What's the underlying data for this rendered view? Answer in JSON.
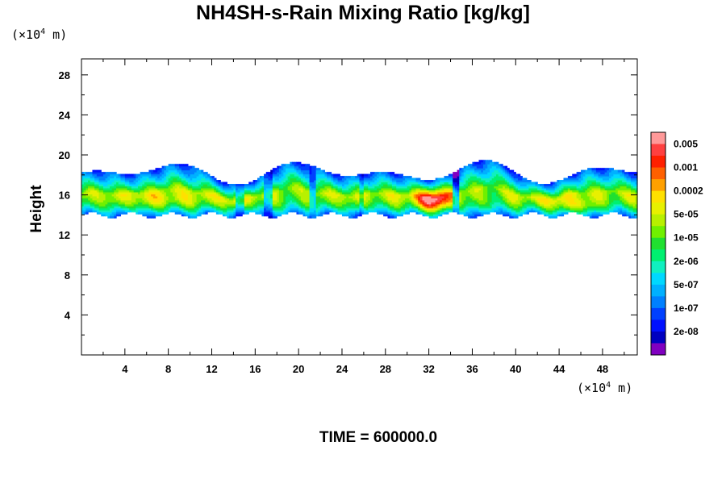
{
  "title": "NH4SH-s-Rain Mixing Ratio [kg/kg]",
  "y_unit": {
    "prefix": "(×10",
    "exp": "4",
    "suffix": " m)"
  },
  "x_unit": {
    "prefix": "(×10",
    "exp": "4",
    "suffix": " m)"
  },
  "ylabel": "Height",
  "time_label": "TIME = 600000.0",
  "chart_data": {
    "type": "heatmap",
    "title": "NH4SH-s-Rain Mixing Ratio [kg/kg]",
    "ylabel": "Height",
    "xlim": [
      0,
      51.2
    ],
    "ylim": [
      0,
      29.6
    ],
    "x_ticks": [
      4,
      8,
      12,
      16,
      20,
      24,
      28,
      32,
      36,
      40,
      44,
      48
    ],
    "y_ticks": [
      4,
      8,
      12,
      16,
      20,
      24,
      28
    ],
    "colorbar": {
      "labels": [
        "0.005",
        "0.001",
        "0.0002",
        "5e-05",
        "1e-05",
        "2e-06",
        "5e-07",
        "1e-07",
        "2e-08"
      ],
      "colors": [
        "#ff9999",
        "#ff4040",
        "#ff2000",
        "#ff6000",
        "#ffa000",
        "#ffe000",
        "#e8f000",
        "#b8f000",
        "#70f000",
        "#20e030",
        "#00f070",
        "#10f0c0",
        "#00d8ff",
        "#00b0ff",
        "#0080ff",
        "#0040ff",
        "#0010ff",
        "#0000c0",
        "#8000c0"
      ]
    },
    "field": {
      "layer_bottom_height": 14,
      "layer_top_height_range": [
        17,
        19.5
      ],
      "peak_location": {
        "x": 32.5,
        "y": 15.5
      }
    }
  }
}
